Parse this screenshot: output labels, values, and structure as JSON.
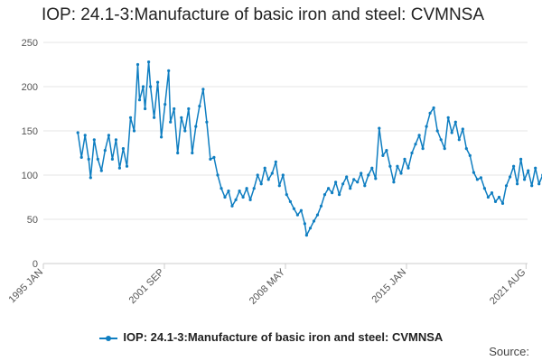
{
  "title": "IOP: 24.1-3:Manufacture of basic iron and steel: CVMNSA",
  "legend_label": "IOP: 24.1-3:Manufacture of basic iron and steel: CVMNSA",
  "source_label": "Source:",
  "colors": {
    "series": "#0f7ec1",
    "grid": "#e6e6e6",
    "axis": "#cccccc"
  },
  "chart_data": {
    "type": "line",
    "title": "IOP: 24.1-3:Manufacture of basic iron and steel: CVMNSA",
    "xlabel": "",
    "ylabel": "",
    "ylim": [
      0,
      250
    ],
    "yticks": [
      0,
      50,
      100,
      150,
      200,
      250
    ],
    "xlim": [
      1995.0,
      2021.667
    ],
    "xticks": [
      {
        "value": 1995.0,
        "label": "1995 JAN"
      },
      {
        "value": 2001.667,
        "label": "2001 SEP"
      },
      {
        "value": 2008.333,
        "label": "2008 MAY"
      },
      {
        "value": 2015.0,
        "label": "2015 JAN"
      },
      {
        "value": 2021.583,
        "label": "2021 AUG"
      }
    ],
    "series": [
      {
        "name": "IOP: 24.1-3:Manufacture of basic iron and steel: CVMNSA",
        "points": [
          [
            1996.9,
            148
          ],
          [
            1997.1,
            120
          ],
          [
            1997.3,
            145
          ],
          [
            1997.5,
            118
          ],
          [
            1997.6,
            97
          ],
          [
            1997.8,
            140
          ],
          [
            1998.0,
            118
          ],
          [
            1998.2,
            105
          ],
          [
            1998.4,
            128
          ],
          [
            1998.6,
            145
          ],
          [
            1998.8,
            118
          ],
          [
            1999.0,
            140
          ],
          [
            1999.2,
            108
          ],
          [
            1999.4,
            130
          ],
          [
            1999.6,
            110
          ],
          [
            1999.8,
            165
          ],
          [
            2000.0,
            150
          ],
          [
            2000.2,
            225
          ],
          [
            2000.3,
            185
          ],
          [
            2000.5,
            200
          ],
          [
            2000.6,
            175
          ],
          [
            2000.8,
            228
          ],
          [
            2000.9,
            200
          ],
          [
            2001.1,
            165
          ],
          [
            2001.3,
            205
          ],
          [
            2001.5,
            143
          ],
          [
            2001.7,
            180
          ],
          [
            2001.9,
            218
          ],
          [
            2002.0,
            160
          ],
          [
            2002.2,
            175
          ],
          [
            2002.4,
            125
          ],
          [
            2002.6,
            165
          ],
          [
            2002.8,
            150
          ],
          [
            2003.0,
            175
          ],
          [
            2003.2,
            125
          ],
          [
            2003.4,
            155
          ],
          [
            2003.6,
            178
          ],
          [
            2003.8,
            197
          ],
          [
            2004.0,
            160
          ],
          [
            2004.2,
            118
          ],
          [
            2004.4,
            120
          ],
          [
            2004.6,
            100
          ],
          [
            2004.8,
            85
          ],
          [
            2005.0,
            75
          ],
          [
            2005.2,
            82
          ],
          [
            2005.4,
            65
          ],
          [
            2005.6,
            72
          ],
          [
            2005.8,
            82
          ],
          [
            2006.0,
            75
          ],
          [
            2006.2,
            85
          ],
          [
            2006.4,
            72
          ],
          [
            2006.6,
            85
          ],
          [
            2006.8,
            100
          ],
          [
            2007.0,
            90
          ],
          [
            2007.2,
            108
          ],
          [
            2007.4,
            95
          ],
          [
            2007.6,
            102
          ],
          [
            2007.8,
            115
          ],
          [
            2008.0,
            88
          ],
          [
            2008.2,
            100
          ],
          [
            2008.4,
            78
          ],
          [
            2008.6,
            70
          ],
          [
            2008.8,
            62
          ],
          [
            2009.0,
            55
          ],
          [
            2009.2,
            60
          ],
          [
            2009.4,
            45
          ],
          [
            2009.5,
            32
          ],
          [
            2009.7,
            40
          ],
          [
            2009.9,
            48
          ],
          [
            2010.1,
            55
          ],
          [
            2010.3,
            65
          ],
          [
            2010.5,
            78
          ],
          [
            2010.7,
            85
          ],
          [
            2010.9,
            80
          ],
          [
            2011.1,
            92
          ],
          [
            2011.3,
            78
          ],
          [
            2011.5,
            90
          ],
          [
            2011.7,
            98
          ],
          [
            2011.9,
            85
          ],
          [
            2012.1,
            95
          ],
          [
            2012.3,
            92
          ],
          [
            2012.5,
            102
          ],
          [
            2012.7,
            88
          ],
          [
            2012.9,
            100
          ],
          [
            2013.1,
            108
          ],
          [
            2013.3,
            96
          ],
          [
            2013.5,
            153
          ],
          [
            2013.7,
            122
          ],
          [
            2013.9,
            128
          ],
          [
            2014.1,
            110
          ],
          [
            2014.3,
            92
          ],
          [
            2014.5,
            110
          ],
          [
            2014.7,
            102
          ],
          [
            2014.9,
            118
          ],
          [
            2015.1,
            108
          ],
          [
            2015.3,
            125
          ],
          [
            2015.5,
            135
          ],
          [
            2015.7,
            145
          ],
          [
            2015.9,
            130
          ],
          [
            2016.1,
            155
          ],
          [
            2016.3,
            170
          ],
          [
            2016.5,
            176
          ],
          [
            2016.7,
            150
          ],
          [
            2016.9,
            140
          ],
          [
            2017.1,
            130
          ],
          [
            2017.3,
            165
          ],
          [
            2017.5,
            148
          ],
          [
            2017.7,
            160
          ],
          [
            2017.9,
            140
          ],
          [
            2018.1,
            152
          ],
          [
            2018.3,
            130
          ],
          [
            2018.5,
            122
          ],
          [
            2018.7,
            103
          ],
          [
            2018.9,
            95
          ],
          [
            2019.1,
            97
          ],
          [
            2019.3,
            85
          ],
          [
            2019.5,
            75
          ],
          [
            2019.7,
            80
          ],
          [
            2019.9,
            70
          ],
          [
            2020.1,
            75
          ],
          [
            2020.3,
            68
          ],
          [
            2020.5,
            88
          ],
          [
            2020.7,
            98
          ],
          [
            2020.9,
            110
          ],
          [
            2021.1,
            90
          ],
          [
            2021.3,
            118
          ],
          [
            2021.5,
            95
          ],
          [
            2021.7,
            105
          ],
          [
            2021.9,
            88
          ],
          [
            2022.1,
            108
          ],
          [
            2022.3,
            90
          ],
          [
            2022.5,
            100
          ],
          [
            2022.7,
            85
          ],
          [
            2022.8,
            92
          ],
          [
            2022.9,
            70
          ]
        ]
      }
    ]
  }
}
